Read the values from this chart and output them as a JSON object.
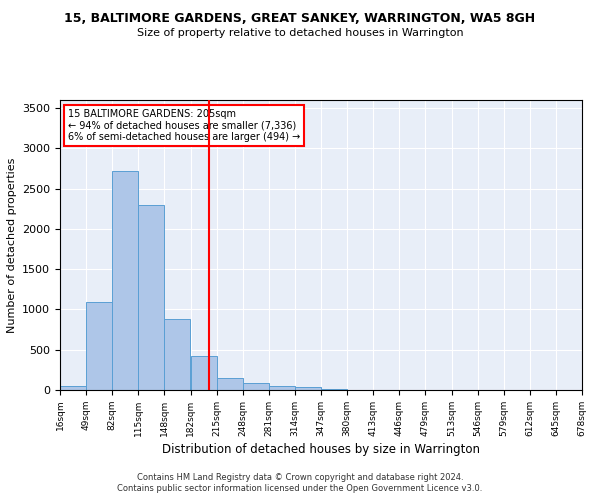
{
  "title": "15, BALTIMORE GARDENS, GREAT SANKEY, WARRINGTON, WA5 8GH",
  "subtitle": "Size of property relative to detached houses in Warrington",
  "xlabel": "Distribution of detached houses by size in Warrington",
  "ylabel": "Number of detached properties",
  "footer1": "Contains HM Land Registry data © Crown copyright and database right 2024.",
  "footer2": "Contains public sector information licensed under the Open Government Licence v3.0.",
  "annotation_line1": "15 BALTIMORE GARDENS: 205sqm",
  "annotation_line2": "← 94% of detached houses are smaller (7,336)",
  "annotation_line3": "6% of semi-detached houses are larger (494) →",
  "property_size": 205,
  "bin_edges": [
    16,
    49,
    82,
    115,
    148,
    182,
    215,
    248,
    281,
    314,
    347,
    380,
    413,
    446,
    479,
    513,
    546,
    579,
    612,
    645,
    678
  ],
  "bar_heights": [
    50,
    1090,
    2720,
    2300,
    880,
    420,
    155,
    90,
    55,
    40,
    10,
    5,
    5,
    2,
    0,
    0,
    0,
    0,
    0,
    0
  ],
  "bar_color": "#aec6e8",
  "bar_edge_color": "#5a9fd4",
  "vline_color": "red",
  "vline_x": 205,
  "annotation_box_color": "red",
  "background_color": "#e8eef8",
  "ylim": [
    0,
    3600
  ],
  "yticks": [
    0,
    500,
    1000,
    1500,
    2000,
    2500,
    3000,
    3500
  ]
}
